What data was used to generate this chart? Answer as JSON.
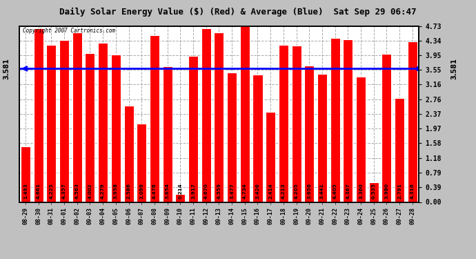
{
  "title": "Daily Solar Energy Value ($) (Red) & Average (Blue)  Sat Sep 29 06:47",
  "copyright": "Copyright 2007 Cartronics.com",
  "average": 3.581,
  "bar_color": "#FF0000",
  "average_color": "#0000FF",
  "background_color": "#C0C0C0",
  "plot_bg_color": "#FFFFFF",
  "ylim": [
    0.0,
    4.73
  ],
  "yticks": [
    0.0,
    0.39,
    0.79,
    1.18,
    1.58,
    1.97,
    2.37,
    2.76,
    3.16,
    3.55,
    3.95,
    4.34,
    4.73
  ],
  "categories": [
    "08-29",
    "08-30",
    "08-31",
    "09-01",
    "09-02",
    "09-03",
    "09-04",
    "09-05",
    "09-06",
    "09-07",
    "09-08",
    "09-09",
    "09-10",
    "09-11",
    "09-12",
    "09-13",
    "09-14",
    "09-15",
    "09-16",
    "09-17",
    "09-18",
    "09-19",
    "09-20",
    "09-21",
    "09-22",
    "09-23",
    "09-24",
    "09-25",
    "09-26",
    "09-27",
    "09-28"
  ],
  "values": [
    1.493,
    4.661,
    4.225,
    4.357,
    4.563,
    4.002,
    4.279,
    3.958,
    2.586,
    2.099,
    4.476,
    3.654,
    0.214,
    3.917,
    4.67,
    4.559,
    3.477,
    4.734,
    3.426,
    2.414,
    4.213,
    4.205,
    3.656,
    3.441,
    4.405,
    4.367,
    3.36,
    0.535,
    3.98,
    2.791,
    4.316
  ]
}
